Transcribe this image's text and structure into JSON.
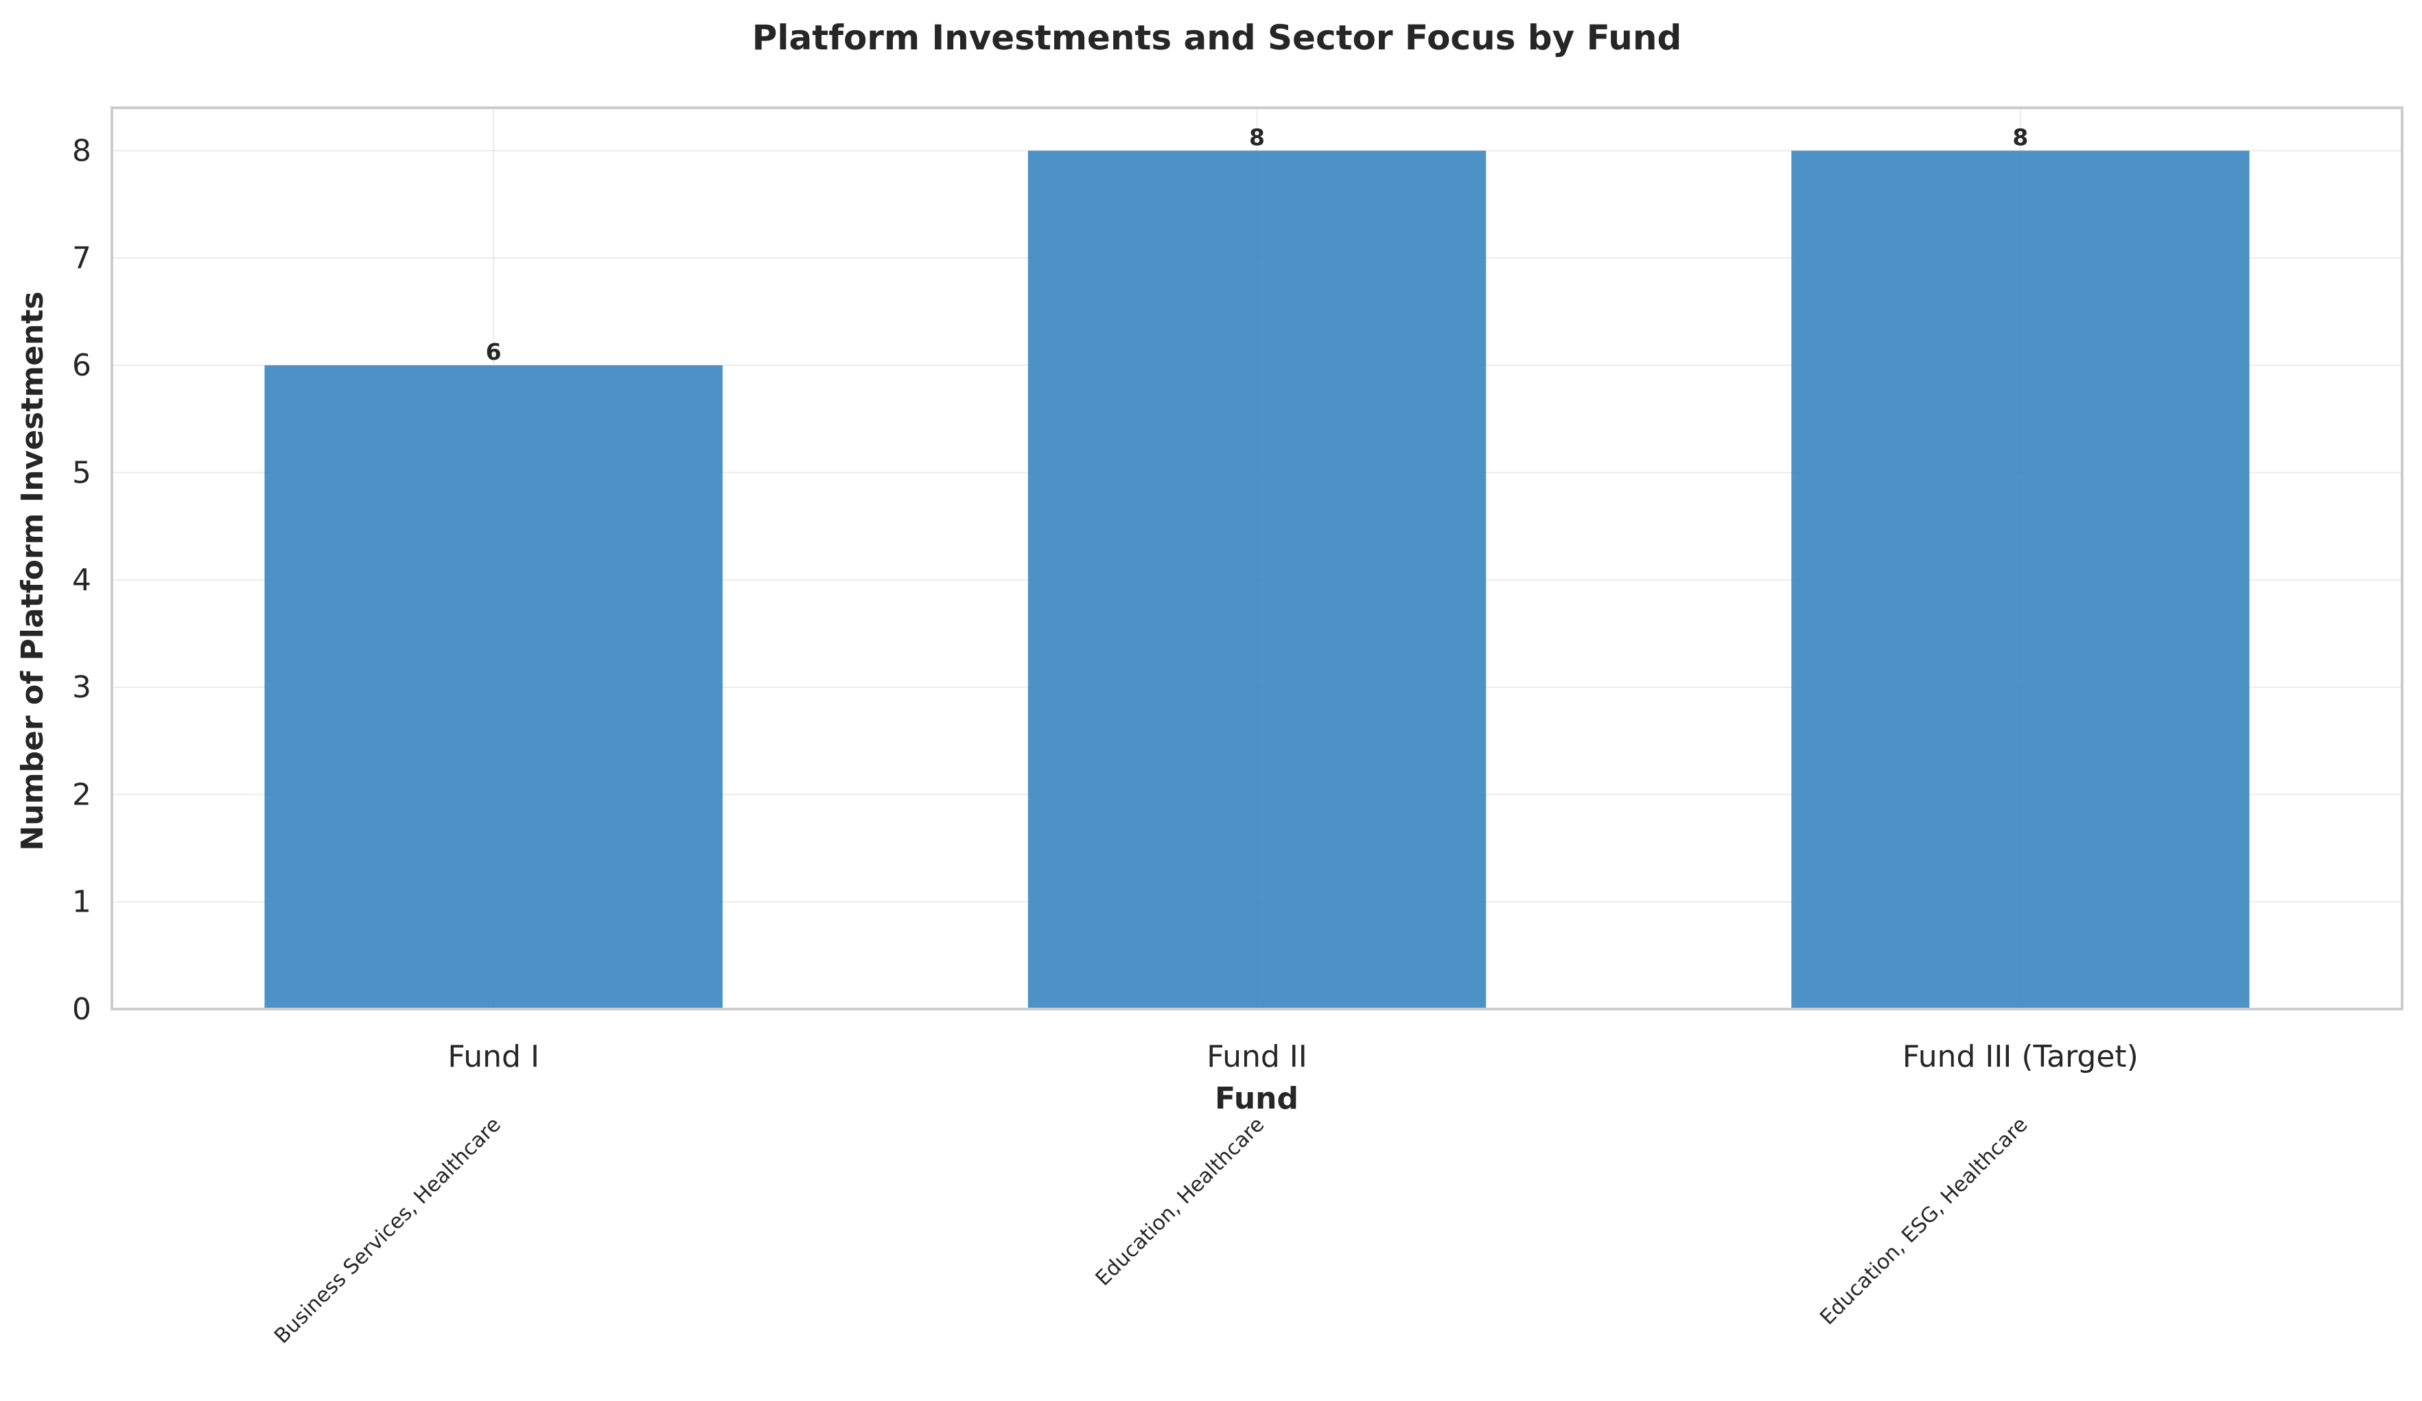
{
  "chart_data": {
    "type": "bar",
    "title": "Platform Investments and Sector Focus by Fund",
    "xlabel": "Fund",
    "ylabel": "Number of Platform Investments",
    "categories": [
      "Fund I",
      "Fund II",
      "Fund III (Target)"
    ],
    "values": [
      6,
      8,
      8
    ],
    "data_labels": [
      "6",
      "8",
      "8"
    ],
    "sector_annotations": [
      "Business Services, Healthcare",
      "Education, Healthcare",
      "Education, ESG, Healthcare"
    ],
    "ylim": [
      0,
      8.4
    ],
    "yticks": [
      0,
      1,
      2,
      3,
      4,
      5,
      6,
      7,
      8
    ],
    "grid": true,
    "bar_color": "#3a86c0",
    "frame_color": "#cccccc",
    "grid_color": "#ebebeb"
  }
}
